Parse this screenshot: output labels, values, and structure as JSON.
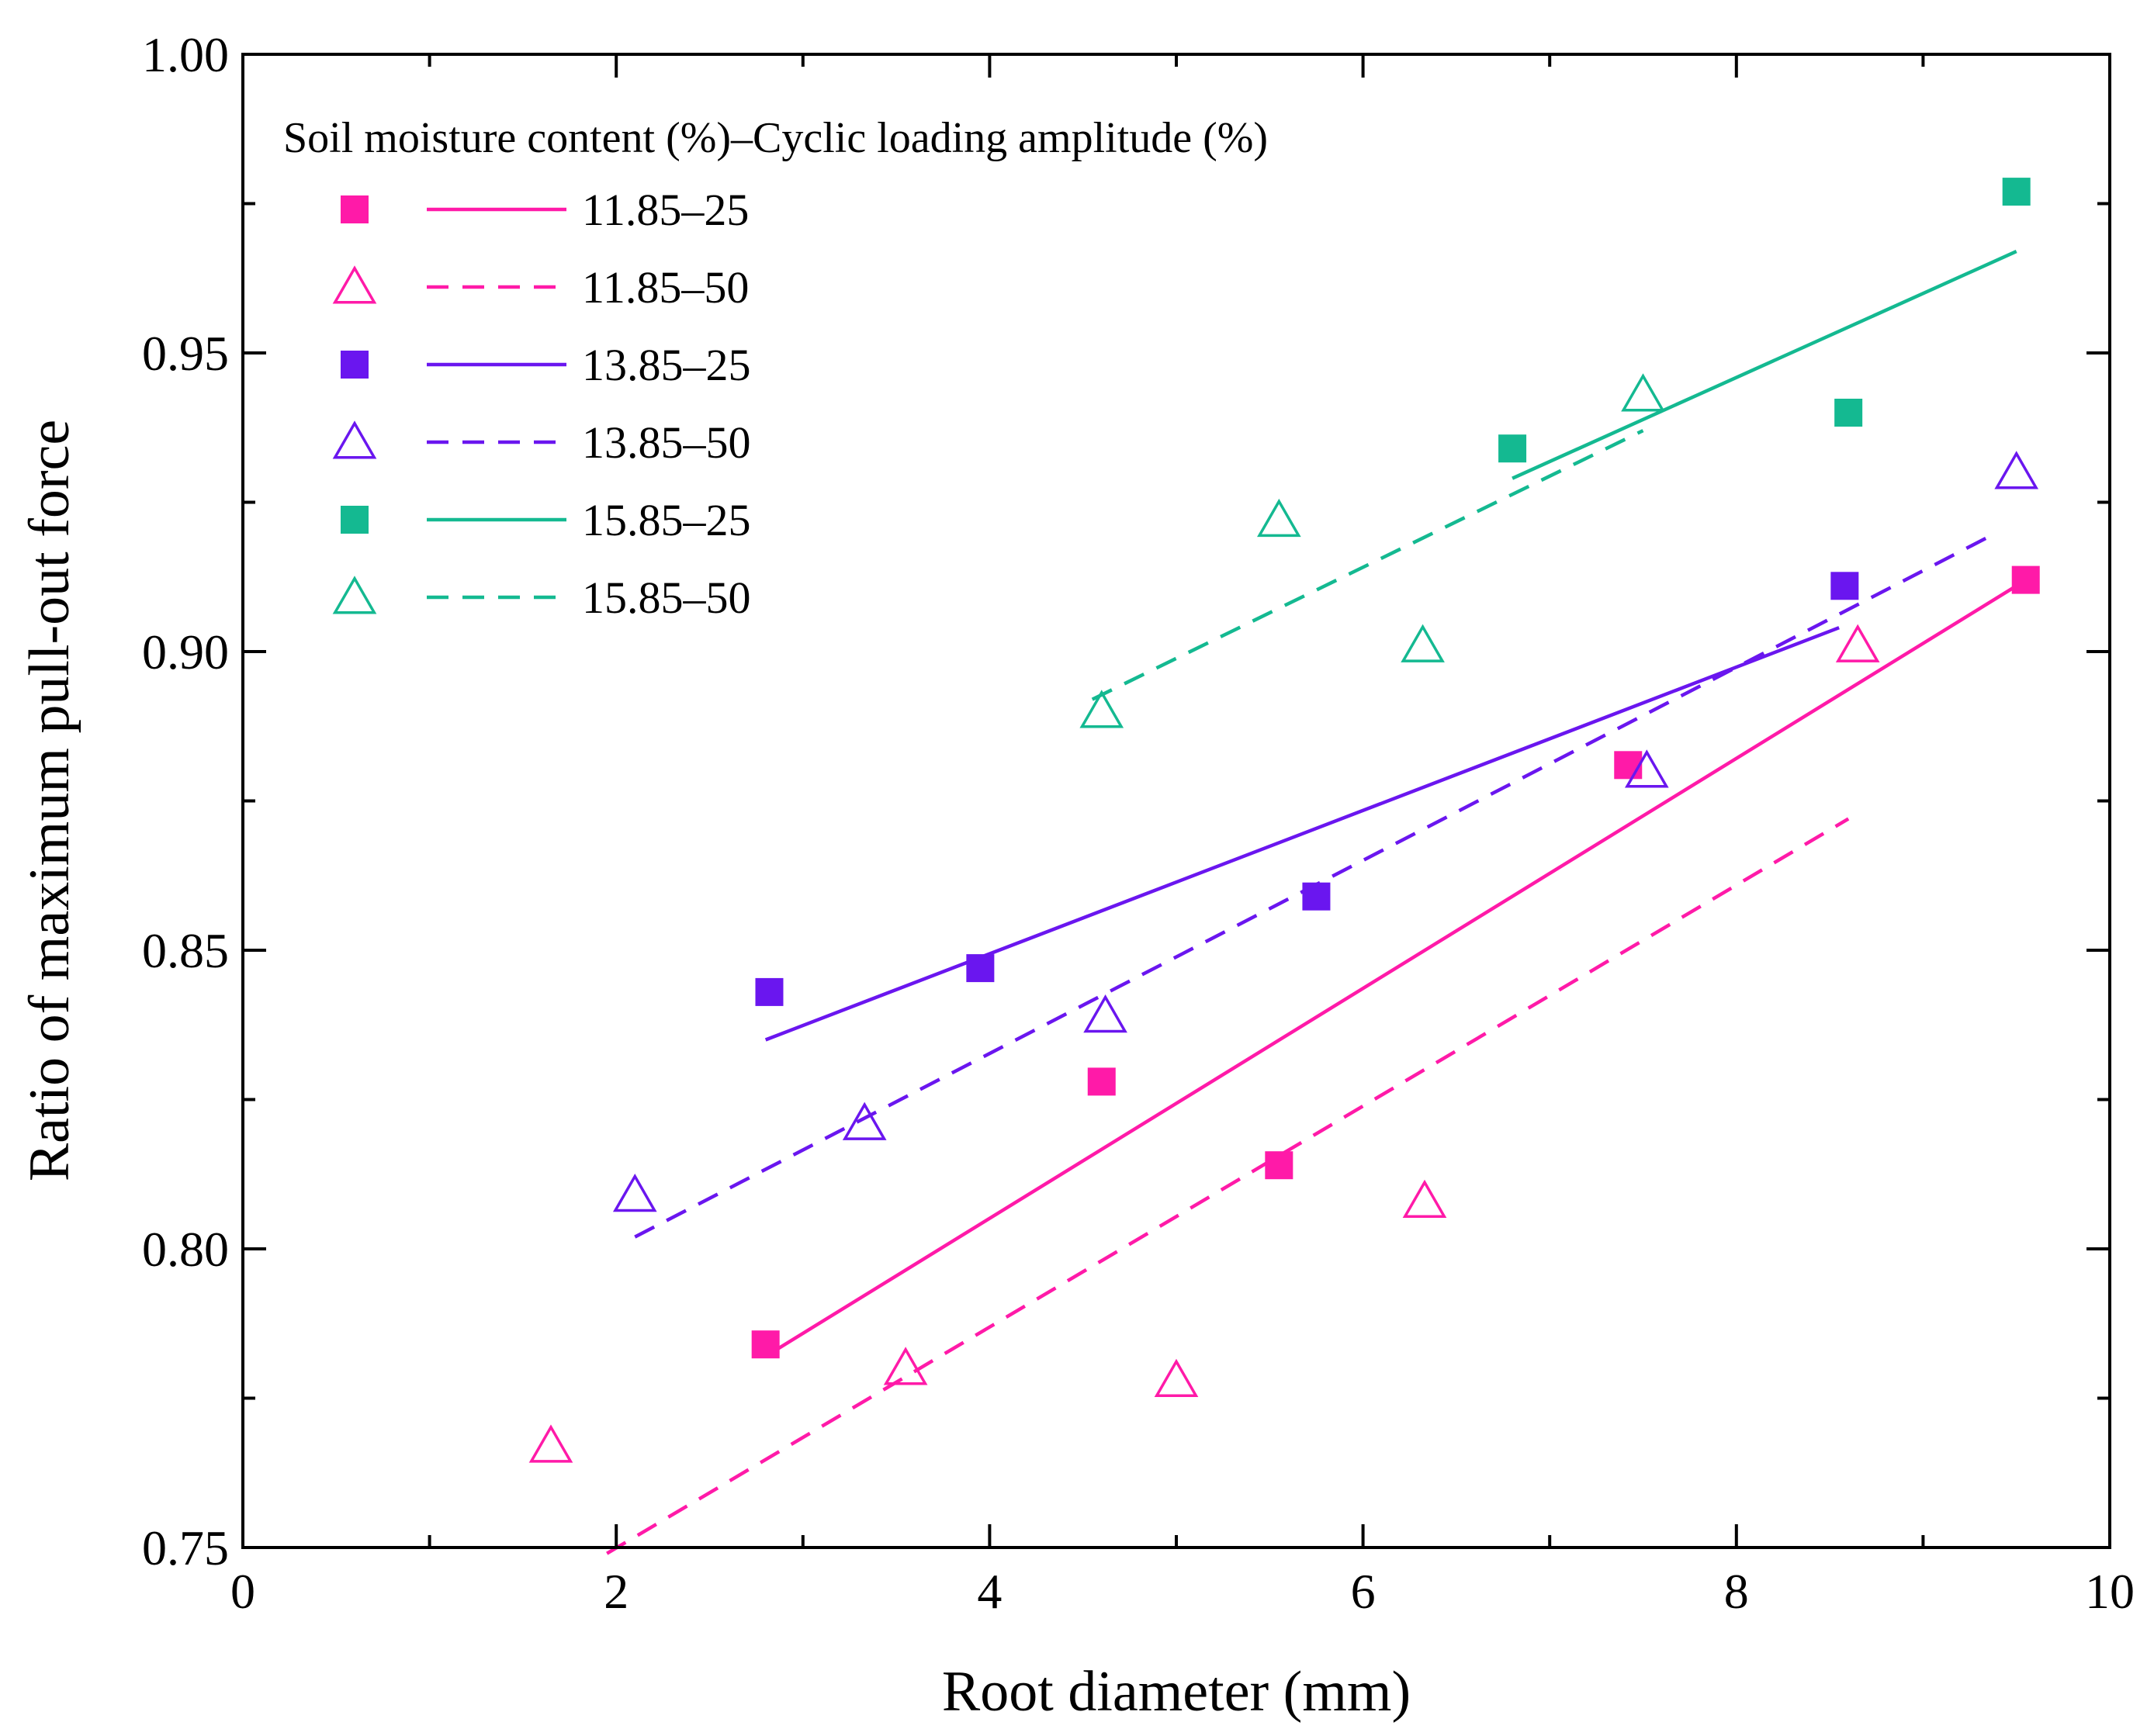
{
  "chart_data": {
    "type": "scatter",
    "xlabel": "Root diameter (mm)",
    "ylabel": "Ratio of maximum pull-out force",
    "xlim": [
      0,
      10
    ],
    "ylim": [
      0.75,
      1.0
    ],
    "xticks": [
      "0",
      "2",
      "4",
      "6",
      "8",
      "10"
    ],
    "yticks": [
      "0.75",
      "0.80",
      "0.85",
      "0.90",
      "0.95",
      "1.00"
    ],
    "legend_title": "Soil moisture content (%)–Cyclic loading amplitude (%)",
    "legend_position": "top-left",
    "series": [
      {
        "name": "11.85–25",
        "color": "#ff1aa8",
        "marker": "square",
        "line": "solid",
        "points": [
          [
            2.8,
            0.784
          ],
          [
            4.6,
            0.828
          ],
          [
            5.55,
            0.814
          ],
          [
            7.42,
            0.881
          ],
          [
            9.55,
            0.912
          ]
        ],
        "fit": [
          [
            2.8,
            0.782
          ],
          [
            9.5,
            0.911
          ]
        ]
      },
      {
        "name": "11.85–50",
        "color": "#ff1aa8",
        "marker": "triangle-open",
        "line": "dashed",
        "points": [
          [
            1.65,
            0.767
          ],
          [
            3.55,
            0.78
          ],
          [
            5.0,
            0.778
          ],
          [
            6.33,
            0.808
          ],
          [
            8.65,
            0.901
          ]
        ],
        "fit": [
          [
            1.95,
            0.749
          ],
          [
            8.6,
            0.872
          ]
        ]
      },
      {
        "name": "13.85–25",
        "color": "#6a16ef",
        "marker": "square",
        "line": "solid",
        "points": [
          [
            2.82,
            0.843
          ],
          [
            3.95,
            0.847
          ],
          [
            5.75,
            0.859
          ],
          [
            8.58,
            0.911
          ]
        ],
        "fit": [
          [
            2.8,
            0.835
          ],
          [
            8.55,
            0.904
          ]
        ]
      },
      {
        "name": "13.85–50",
        "color": "#6a16ef",
        "marker": "triangle-open",
        "line": "dashed",
        "points": [
          [
            2.1,
            0.809
          ],
          [
            3.33,
            0.821
          ],
          [
            4.62,
            0.839
          ],
          [
            7.52,
            0.88
          ],
          [
            9.5,
            0.93
          ]
        ],
        "fit": [
          [
            2.1,
            0.802
          ],
          [
            9.4,
            0.92
          ]
        ]
      },
      {
        "name": "15.85–25",
        "color": "#14b991",
        "marker": "square",
        "line": "solid",
        "points": [
          [
            6.8,
            0.934
          ],
          [
            8.6,
            0.94
          ],
          [
            9.5,
            0.977
          ]
        ],
        "fit": [
          [
            6.8,
            0.929
          ],
          [
            9.5,
            0.967
          ]
        ]
      },
      {
        "name": "15.85–50",
        "color": "#14b991",
        "marker": "triangle-open",
        "line": "dashed",
        "points": [
          [
            4.6,
            0.89
          ],
          [
            5.55,
            0.922
          ],
          [
            6.32,
            0.901
          ],
          [
            7.5,
            0.943
          ]
        ],
        "fit": [
          [
            4.55,
            0.892
          ],
          [
            7.5,
            0.937
          ]
        ]
      }
    ]
  }
}
